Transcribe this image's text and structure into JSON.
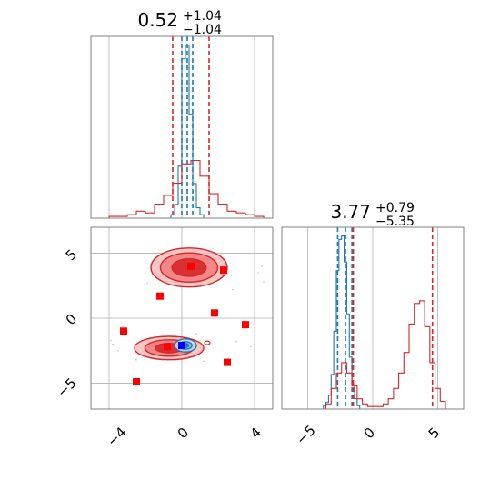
{
  "colors": {
    "blue": "#1f77b4",
    "red": "#d62728",
    "red_fill": "#f08080",
    "grid": "#b0b0b0",
    "marker_red": "#ff0000",
    "marker_blue": "#0000ff"
  },
  "chart_data": [
    {
      "type": "histogram",
      "panel": "param0-marginal",
      "title": {
        "main": "0.52",
        "plus": "+1.04",
        "minus": "−1.04"
      },
      "xlim": [
        -5,
        5
      ],
      "grid": true,
      "series": [
        {
          "name": "",
          "color": "#1f77b4",
          "bin_edges": [
            -0.6,
            -0.4,
            -0.2,
            0.0,
            0.2,
            0.4,
            0.6,
            0.8,
            1.0,
            1.2
          ],
          "counts": [
            2,
            8,
            30,
            92,
            100,
            60,
            20,
            6,
            2
          ],
          "quantile_lines": [
            0.0,
            0.3,
            0.6
          ]
        },
        {
          "name": "",
          "color": "#d62728",
          "bin_edges": [
            -4.0,
            -3.5,
            -3.0,
            -2.5,
            -2.0,
            -1.5,
            -1.0,
            -0.5,
            0.0,
            0.5,
            1.0,
            1.5,
            2.0,
            2.5,
            3.0,
            3.5,
            4.0,
            4.5
          ],
          "counts": [
            1,
            1,
            2,
            4,
            3,
            8,
            13,
            20,
            31,
            33,
            24,
            14,
            8,
            4,
            3,
            2,
            1
          ],
          "quantile_lines": [
            -0.5,
            1.5
          ]
        }
      ]
    },
    {
      "type": "contour-scatter",
      "panel": "param0-vs-param1",
      "xlim": [
        -5,
        5
      ],
      "ylim": [
        -7,
        7
      ],
      "xticks": [
        "−4",
        "0",
        "4"
      ],
      "yticks": [
        "5",
        "0",
        "−5"
      ],
      "grid": true,
      "contours": [
        {
          "color": "#d62728",
          "center": [
            0.4,
            3.9
          ],
          "radii": [
            2.1,
            1.5
          ],
          "levels": [
            1.0,
            0.75,
            0.45
          ]
        },
        {
          "color": "#d62728",
          "center": [
            -0.7,
            -2.3
          ],
          "radii": [
            1.9,
            0.9
          ],
          "levels": [
            1.0,
            0.7,
            0.4
          ]
        },
        {
          "color": "#1f77b4",
          "center": [
            0.2,
            -2.1
          ],
          "radii": [
            0.6,
            0.5
          ],
          "levels": [
            1.0,
            0.6,
            0.3
          ]
        }
      ],
      "markers_red": [
        [
          0.5,
          4.0
        ],
        [
          2.3,
          3.7
        ],
        [
          -1.2,
          1.7
        ],
        [
          1.8,
          0.4
        ],
        [
          3.5,
          -0.5
        ],
        [
          -3.2,
          -1.0
        ],
        [
          -0.8,
          -2.2
        ],
        [
          2.5,
          -3.4
        ],
        [
          -2.5,
          -4.9
        ]
      ],
      "markers_blue": [
        [
          0.0,
          -2.1
        ]
      ]
    },
    {
      "type": "histogram",
      "panel": "param1-marginal",
      "title": {
        "main": "3.77",
        "plus": "+0.79",
        "minus": "−5.35"
      },
      "xlim": [
        -7,
        7
      ],
      "xticks": [
        "−5",
        "0",
        "5"
      ],
      "grid": true,
      "series": [
        {
          "name": "",
          "color": "#1f77b4",
          "bin_edges": [
            -3.8,
            -3.6,
            -3.4,
            -3.2,
            -3.0,
            -2.8,
            -2.6,
            -2.4,
            -2.2,
            -2.0,
            -1.8,
            -1.6,
            -1.4,
            -1.2,
            -1.0
          ],
          "counts": [
            2,
            4,
            8,
            20,
            45,
            80,
            98,
            100,
            85,
            55,
            30,
            14,
            6,
            2
          ],
          "quantile_lines": [
            -2.7,
            -2.1,
            -1.6
          ]
        },
        {
          "name": "",
          "color": "#d62728",
          "bin_edges": [
            -3.6,
            -3.2,
            -2.8,
            -2.4,
            -2.0,
            -1.6,
            -1.2,
            -0.8,
            -0.4,
            0.0,
            0.4,
            0.8,
            1.2,
            1.6,
            2.0,
            2.4,
            2.8,
            3.2,
            3.6,
            4.0,
            4.4,
            4.8,
            5.2,
            5.6
          ],
          "counts": [
            2,
            8,
            14,
            18,
            14,
            9,
            4,
            2,
            1,
            1,
            1,
            2,
            4,
            8,
            14,
            22,
            33,
            41,
            42,
            32,
            18,
            8,
            3
          ],
          "quantile_lines": [
            -1.5,
            4.6
          ]
        }
      ]
    }
  ]
}
